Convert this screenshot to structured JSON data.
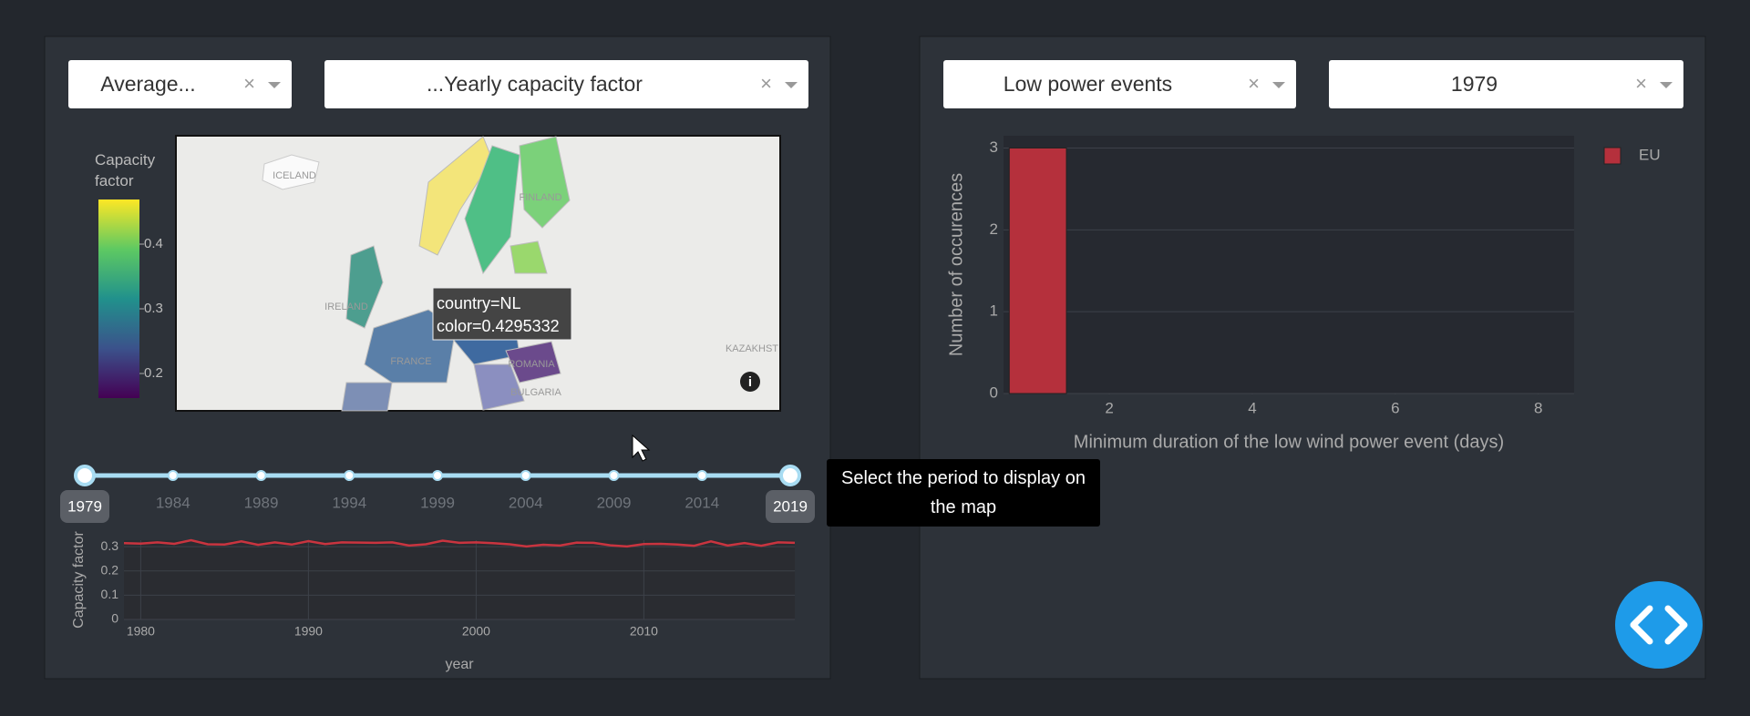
{
  "left_panel": {
    "dropdowns": [
      "Average...",
      "...Yearly capacity factor"
    ],
    "map": {
      "colorbar": {
        "title": "Capacity factor",
        "clim": [
          0.162,
          0.469
        ],
        "ticks": [
          0.2,
          0.3,
          0.4
        ]
      },
      "labels": [
        "ICELAND",
        "FINLAND",
        "IRELAND",
        "FRANCE",
        "ROMANIA",
        "BULGARIA",
        "KAZAKHST"
      ],
      "tooltip": [
        "country=NL",
        "color=0.4295332"
      ]
    },
    "slider": {
      "marks": [
        1979,
        1984,
        1989,
        1994,
        1999,
        2004,
        2009,
        2014,
        2019
      ],
      "range": [
        1979,
        2019
      ],
      "tooltip": "Select the period to display on the map"
    },
    "line_chart": {
      "type": "line",
      "xlabel": "year",
      "ylabel": "Capacity factor",
      "x": [
        1979,
        1980,
        1981,
        1982,
        1983,
        1984,
        1985,
        1986,
        1987,
        1988,
        1989,
        1990,
        1991,
        1992,
        1993,
        1994,
        1995,
        1996,
        1997,
        1998,
        1999,
        2000,
        2001,
        2002,
        2003,
        2004,
        2005,
        2006,
        2007,
        2008,
        2009,
        2010,
        2011,
        2012,
        2013,
        2014,
        2015,
        2016,
        2017,
        2018,
        2019
      ],
      "series": [
        {
          "color": "#c9343f",
          "values": [
            0.315,
            0.313,
            0.318,
            0.312,
            0.327,
            0.31,
            0.309,
            0.322,
            0.308,
            0.318,
            0.309,
            0.323,
            0.311,
            0.318,
            0.317,
            0.316,
            0.318,
            0.305,
            0.31,
            0.325,
            0.316,
            0.318,
            0.315,
            0.31,
            0.301,
            0.308,
            0.305,
            0.317,
            0.316,
            0.306,
            0.301,
            0.311,
            0.312,
            0.309,
            0.304,
            0.322,
            0.305,
            0.315,
            0.304,
            0.318,
            0.316
          ]
        }
      ],
      "xlim": [
        1979,
        2019
      ],
      "xticks": [
        1980,
        1990,
        2000,
        2010
      ],
      "ylim": [
        0,
        0.327
      ],
      "yticks": [
        0,
        0.1,
        0.2,
        0.3
      ],
      "grid": true
    }
  },
  "right_panel": {
    "dropdowns": [
      "Low power events",
      "1979"
    ],
    "bar_chart": {
      "type": "bar",
      "xlabel": "Minimum duration of the low wind power event (days)",
      "ylabel": "Number of occurences",
      "x": [
        1
      ],
      "series": [
        {
          "name": "EU",
          "color": "#b5303c",
          "values": [
            3
          ]
        }
      ],
      "xlim": [
        0.52,
        8.5
      ],
      "xticks": [
        2,
        4,
        6,
        8
      ],
      "ylim": [
        0,
        3.15
      ],
      "yticks": [
        0,
        1,
        2,
        3
      ],
      "grid": true
    }
  }
}
